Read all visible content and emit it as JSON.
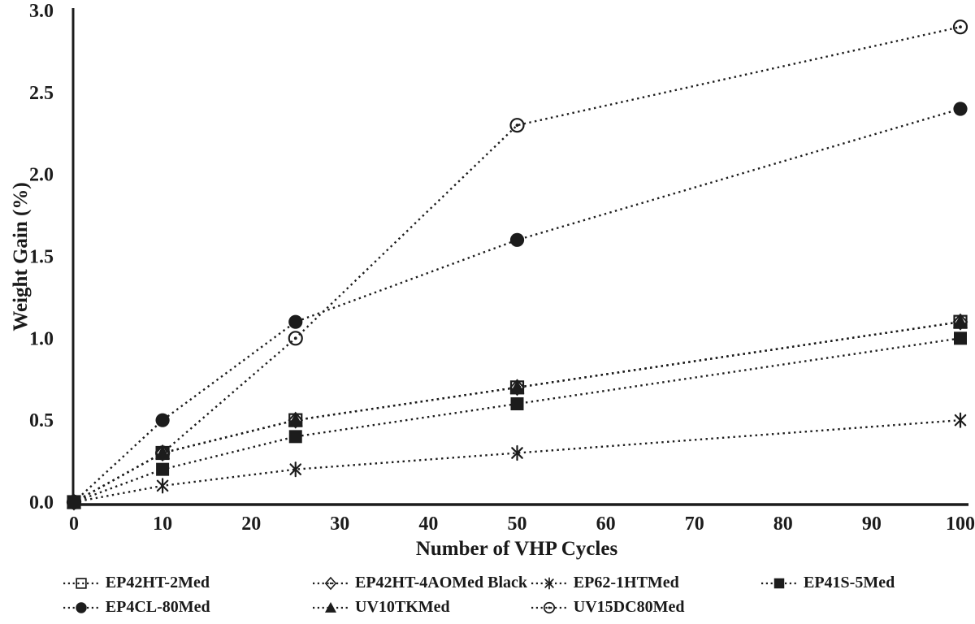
{
  "figure": {
    "background": "#ffffff",
    "ink": "#1c1c1c"
  },
  "chart_data": {
    "type": "line",
    "title": "",
    "xlabel": "Number of VHP Cycles",
    "ylabel": "Weight Gain (%)",
    "x": [
      0,
      10,
      25,
      50,
      100
    ],
    "xlim": [
      0,
      100
    ],
    "ylim": [
      0,
      3.0
    ],
    "x_ticks": [
      0,
      10,
      20,
      30,
      40,
      50,
      60,
      70,
      80,
      90,
      100
    ],
    "y_ticks": [
      0.0,
      0.5,
      1.0,
      1.5,
      2.0,
      2.5,
      3.0
    ],
    "grid": false,
    "line_style": "dotted",
    "line_color": "#1c1c1c",
    "legend_position": "bottom",
    "series": [
      {
        "name": "EP42HT-2Med",
        "marker": "open-square",
        "values": [
          0,
          0.3,
          0.5,
          0.7,
          1.1
        ]
      },
      {
        "name": "EP42HT-4AOMed Black",
        "marker": "open-diamond",
        "values": [
          0,
          0.3,
          0.5,
          0.7,
          1.1
        ]
      },
      {
        "name": "EP62-1HTMed",
        "marker": "asterisk",
        "values": [
          0,
          0.1,
          0.2,
          0.3,
          0.5
        ]
      },
      {
        "name": "EP41S-5Med",
        "marker": "filled-square",
        "values": [
          0,
          0.2,
          0.4,
          0.6,
          1.0
        ]
      },
      {
        "name": "EP4CL-80Med",
        "marker": "filled-circle",
        "values": [
          0,
          0.5,
          1.1,
          1.6,
          2.4
        ]
      },
      {
        "name": "UV10TKMed",
        "marker": "filled-triangle",
        "values": [
          0,
          0.3,
          0.5,
          0.7,
          1.1
        ]
      },
      {
        "name": "UV15DC80Med",
        "marker": "open-circle-dot",
        "values": [
          0,
          0.3,
          1.0,
          2.3,
          2.9
        ]
      }
    ],
    "legend_rows": [
      [
        0,
        1,
        2,
        3
      ],
      [
        4,
        5,
        6
      ]
    ],
    "draw_order": [
      6,
      4,
      1,
      0,
      5,
      2,
      3
    ]
  }
}
